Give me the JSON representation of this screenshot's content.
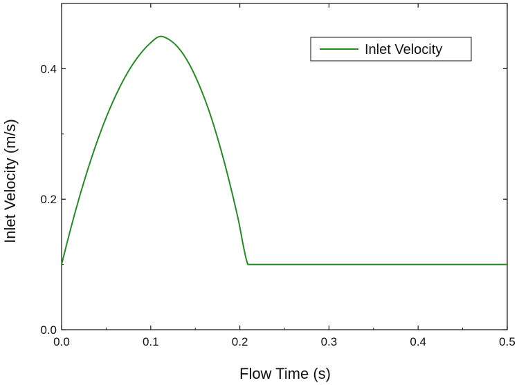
{
  "chart_data": {
    "type": "line",
    "title": "",
    "xlabel": "Flow Time (s)",
    "ylabel": "Inlet Velocity (m/s)",
    "xlim": [
      0,
      0.5
    ],
    "ylim": [
      0,
      0.5
    ],
    "x_ticks": [
      0.0,
      0.1,
      0.2,
      0.3,
      0.4,
      0.5
    ],
    "x_tick_labels": [
      "0.0",
      "0.1",
      "0.2",
      "0.3",
      "0.4",
      "0.5"
    ],
    "y_ticks": [
      0.0,
      0.2,
      0.4
    ],
    "y_tick_labels": [
      "0.0",
      "0.2",
      "0.4"
    ],
    "grid": false,
    "legend_position": "top-right",
    "series": [
      {
        "name": "Inlet Velocity",
        "color": "#228B22",
        "x": [
          0.0,
          0.011,
          0.022,
          0.033,
          0.044,
          0.055,
          0.066,
          0.077,
          0.088,
          0.099,
          0.11,
          0.121,
          0.132,
          0.143,
          0.154,
          0.165,
          0.176,
          0.187,
          0.198,
          0.209,
          0.22,
          0.5
        ],
        "y": [
          0.1,
          0.1588,
          0.2125,
          0.2608,
          0.3039,
          0.3415,
          0.3737,
          0.4007,
          0.4222,
          0.4385,
          0.4493,
          0.4443,
          0.4305,
          0.4077,
          0.3762,
          0.3372,
          0.2891,
          0.2335,
          0.1705,
          0.1,
          0.1,
          0.1
        ]
      }
    ]
  }
}
